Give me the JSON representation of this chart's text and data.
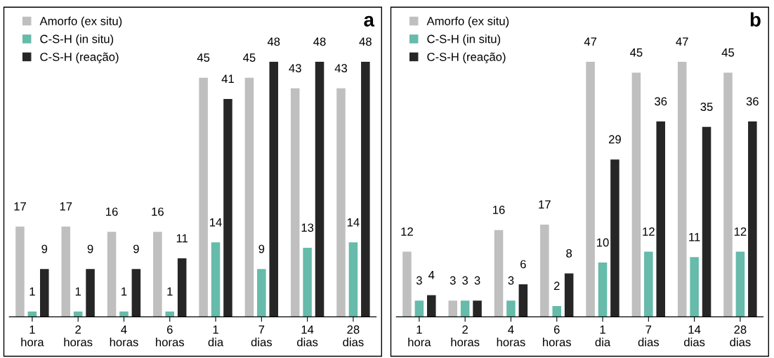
{
  "chart_data": [
    {
      "type": "bar",
      "annotations": [
        "a"
      ],
      "categories": [
        "1\nhora",
        "2\nhoras",
        "4\nhoras",
        "6\nhoras",
        "1\ndia",
        "7\ndias",
        "14\ndias",
        "28\ndias"
      ],
      "tick_labels": "x",
      "data_labels": true,
      "legend": "top left",
      "series": [
        {
          "name": "Amorfo (ex situ)",
          "color": "#bfbfbf",
          "values": [
            17,
            17,
            16,
            16,
            45,
            45,
            43,
            43
          ]
        },
        {
          "name": "C-S-H (in situ)",
          "color": "#66bbaa",
          "values": [
            1,
            1,
            1,
            1,
            14,
            9,
            13,
            14
          ]
        },
        {
          "name": "C-S-H (reação)",
          "color": "#262626",
          "values": [
            9,
            9,
            9,
            11,
            41,
            48,
            48,
            48
          ]
        }
      ]
    },
    {
      "type": "bar",
      "annotations": [
        "b"
      ],
      "categories": [
        "1\nhora",
        "2\nhoras",
        "4\nhoras",
        "6\nhoras",
        "1\ndia",
        "7\ndias",
        "14\ndias",
        "28\ndias"
      ],
      "tick_labels": "x",
      "data_labels": true,
      "legend": "top left",
      "series": [
        {
          "name": "Amorfo (ex situ)",
          "color": "#bfbfbf",
          "values": [
            12,
            3,
            16,
            17,
            47,
            45,
            47,
            45
          ]
        },
        {
          "name": "C-S-H (in situ)",
          "color": "#66bbaa",
          "values": [
            3,
            3,
            3,
            2,
            10,
            12,
            11,
            12
          ]
        },
        {
          "name": "C-S-H (reação)",
          "color": "#262626",
          "values": [
            4,
            3,
            6,
            8,
            29,
            36,
            35,
            36
          ]
        }
      ]
    }
  ]
}
